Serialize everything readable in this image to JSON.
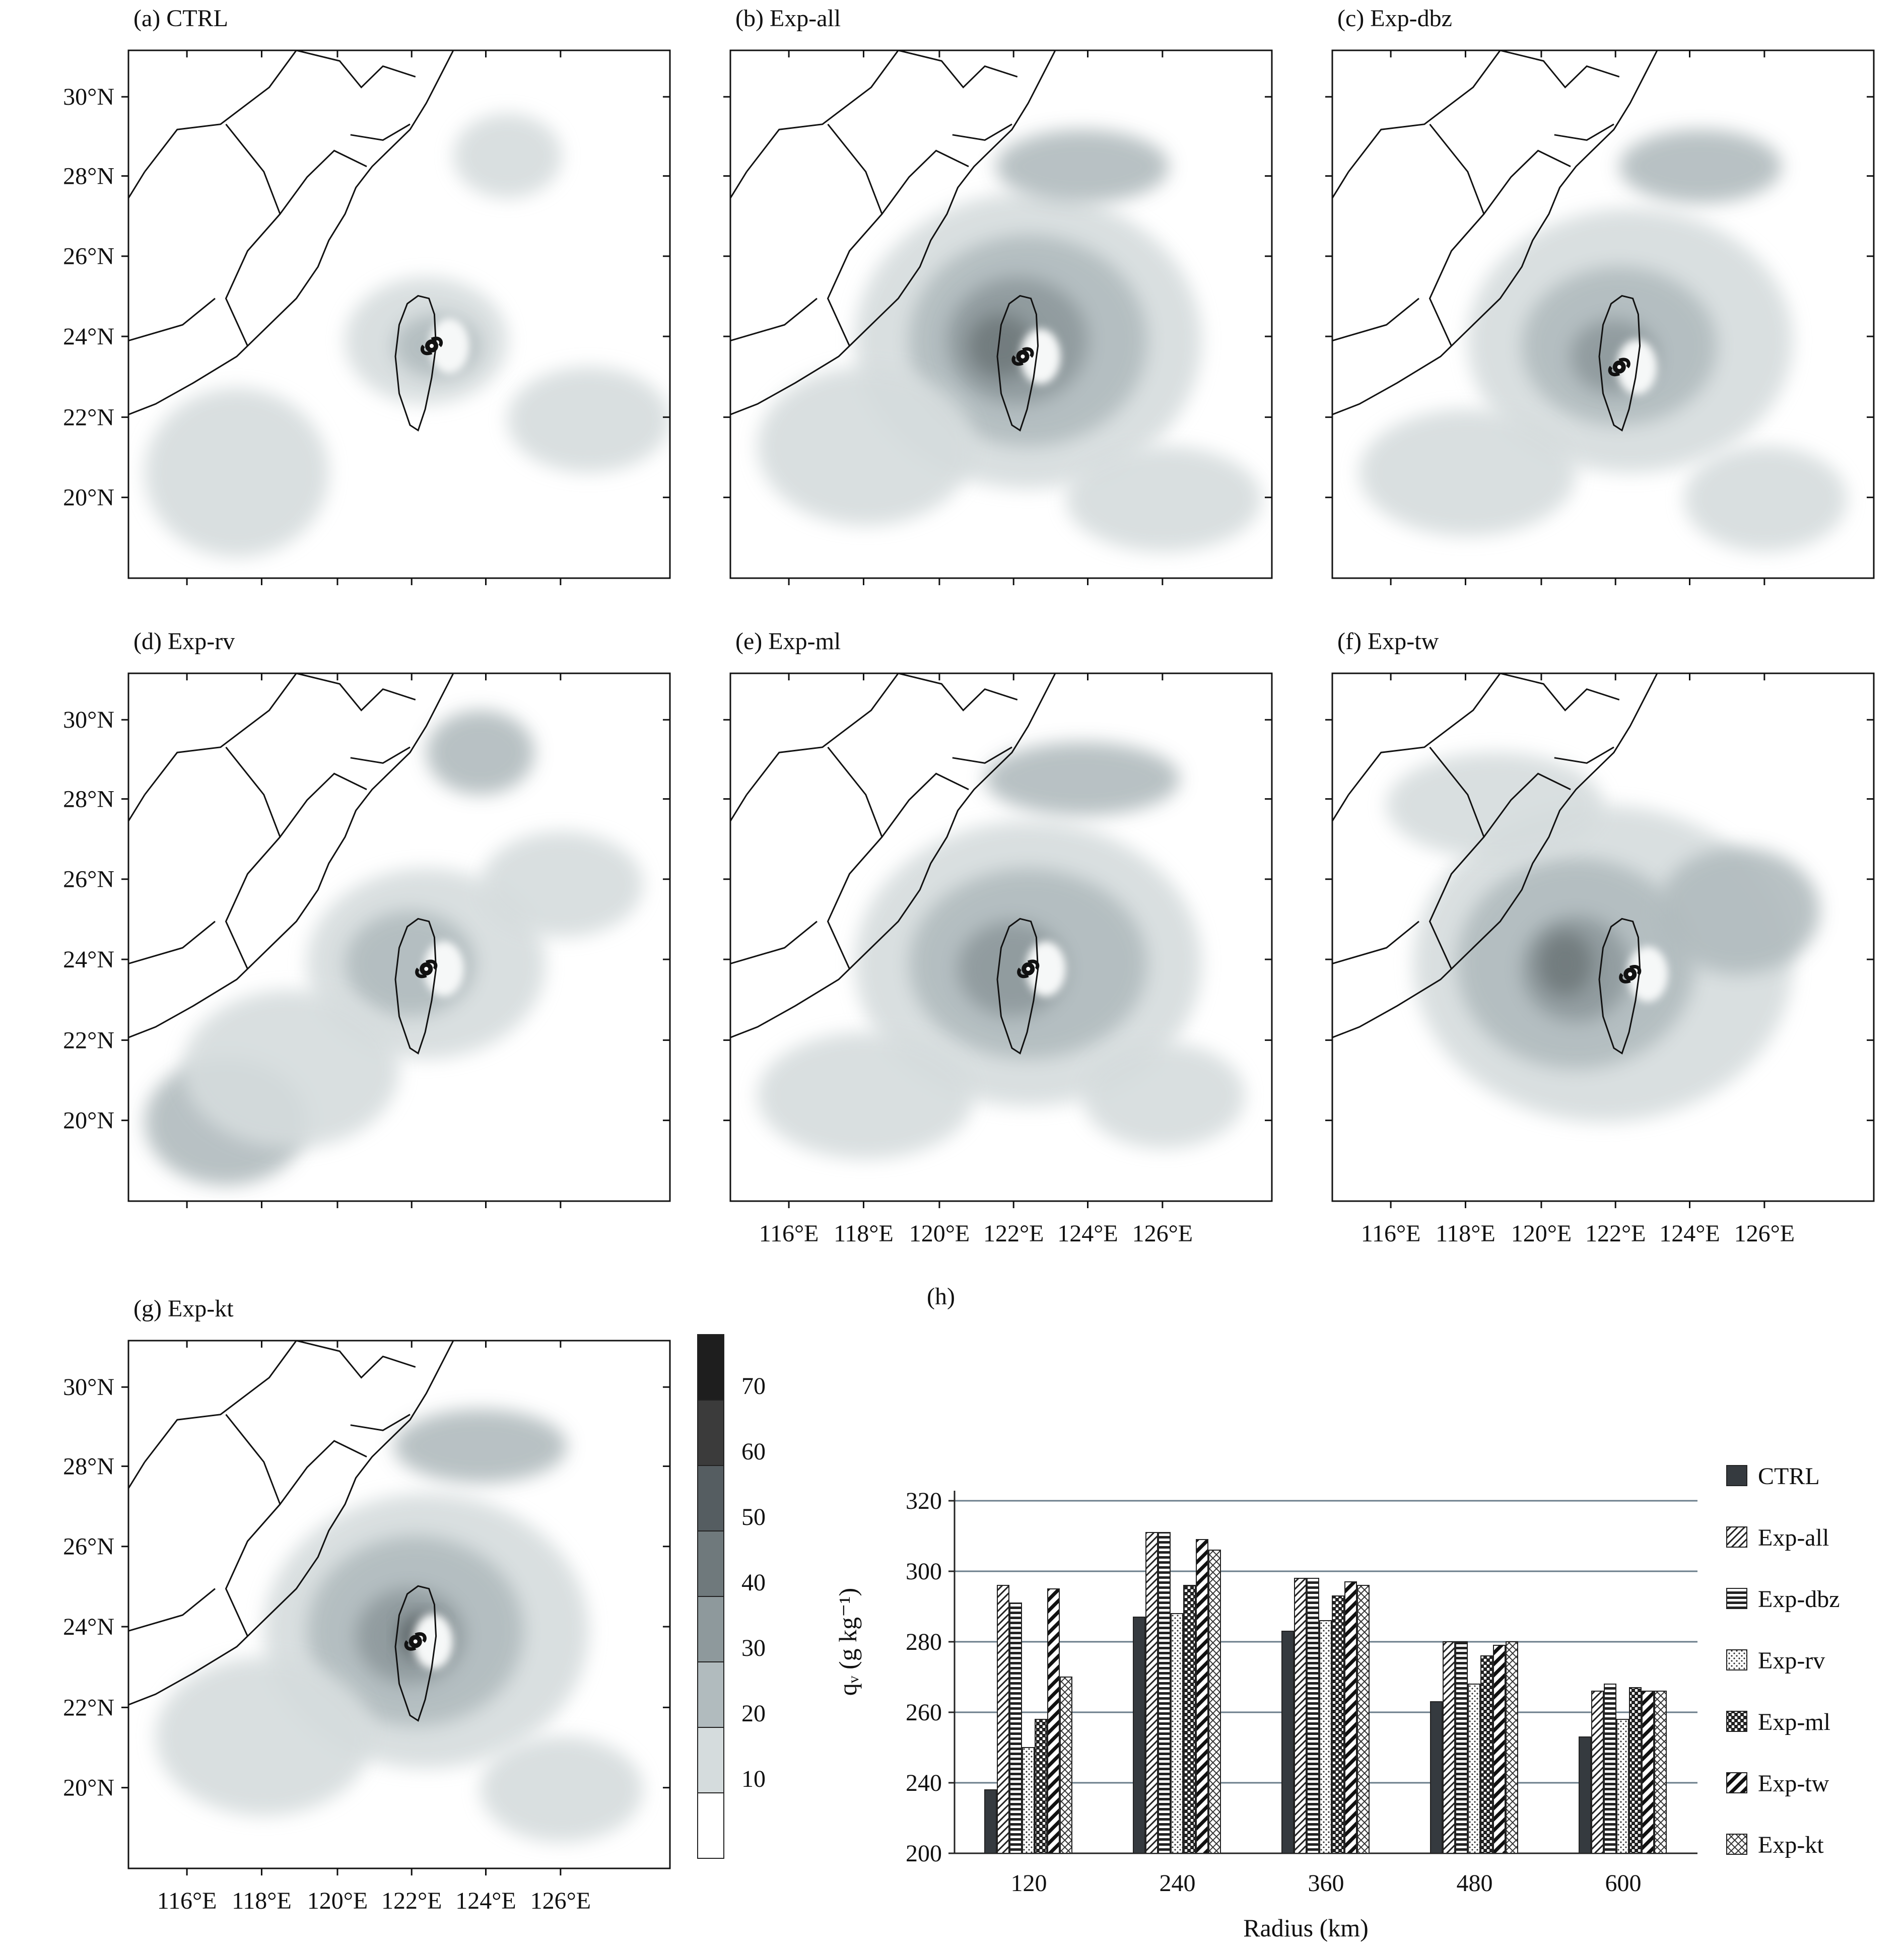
{
  "panels": [
    {
      "id": "a",
      "title": "(a) CTRL",
      "lon_labels": false
    },
    {
      "id": "b",
      "title": "(b) Exp-all",
      "lon_labels": false
    },
    {
      "id": "c",
      "title": "(c) Exp-dbz",
      "lon_labels": false
    },
    {
      "id": "d",
      "title": "(d) Exp-rv",
      "lon_labels": false
    },
    {
      "id": "e",
      "title": "(e) Exp-ml",
      "lon_labels": true
    },
    {
      "id": "f",
      "title": "(f) Exp-tw",
      "lon_labels": true
    },
    {
      "id": "g",
      "title": "(g) Exp-kt",
      "lon_labels": true
    }
  ],
  "lat_labels": [
    "30°N",
    "28°N",
    "26°N",
    "24°N",
    "22°N",
    "20°N"
  ],
  "lon_labels": [
    "116°E",
    "118°E",
    "120°E",
    "122°E",
    "124°E",
    "126°E"
  ],
  "colorbar": {
    "ticks": [
      "70",
      "60",
      "50",
      "40",
      "30",
      "20",
      "10"
    ],
    "colors": [
      "#1e1e1e",
      "#3b3b3b",
      "#555d61",
      "#6f797c",
      "#8e999c",
      "#b1bbbe",
      "#d5dcdd",
      "#ffffff"
    ]
  },
  "chart_data": {
    "type": "bar",
    "panel_label": "(h)",
    "xlabel": "Radius (km)",
    "ylabel": "qᵥ (g kg⁻¹)",
    "ylim": [
      200,
      320
    ],
    "yticks": [
      "320",
      "300",
      "280",
      "260",
      "240",
      "200"
    ],
    "categories": [
      "120",
      "240",
      "360",
      "480",
      "600"
    ],
    "series": [
      {
        "name": "CTRL",
        "pattern": "solid",
        "values": [
          236,
          287,
          283,
          263,
          253
        ]
      },
      {
        "name": "Exp-all",
        "pattern": "diag",
        "values": [
          296,
          311,
          298,
          280,
          266
        ]
      },
      {
        "name": "Exp-dbz",
        "pattern": "horiz",
        "values": [
          291,
          311,
          298,
          280,
          268
        ]
      },
      {
        "name": "Exp-rv",
        "pattern": "dots",
        "values": [
          250,
          288,
          286,
          268,
          258
        ]
      },
      {
        "name": "Exp-ml",
        "pattern": "checker",
        "values": [
          258,
          296,
          293,
          276,
          267
        ]
      },
      {
        "name": "Exp-tw",
        "pattern": "hatch",
        "values": [
          295,
          309,
          297,
          279,
          266
        ]
      },
      {
        "name": "Exp-kt",
        "pattern": "cross",
        "values": [
          270,
          306,
          296,
          280,
          266
        ]
      }
    ]
  }
}
